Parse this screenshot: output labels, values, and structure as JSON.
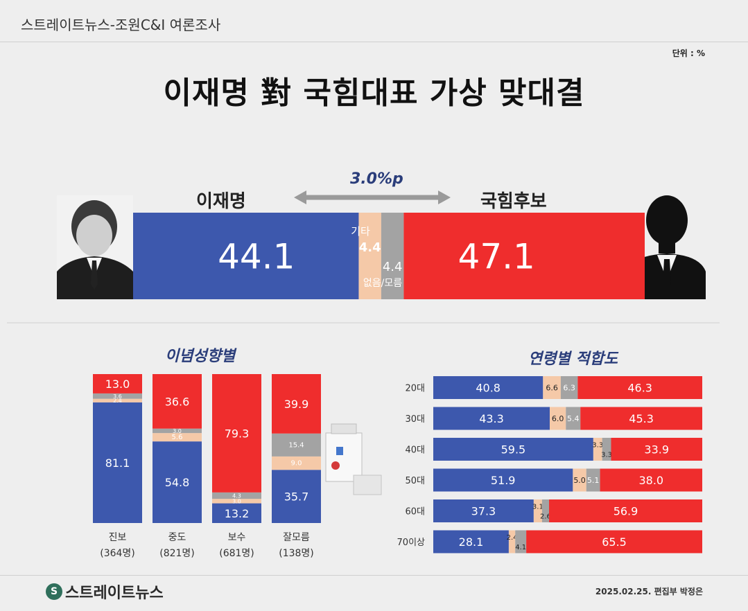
{
  "header": {
    "source": "스트레이트뉴스-조원C&I 여론조사",
    "unit": "단위 : %"
  },
  "title": "이재명 對 국힘대표 가상 맞대결",
  "main": {
    "left_name": "이재명",
    "right_name": "국힘후보",
    "gap": "3.0%p",
    "other_label": "기타",
    "dk_label": "없음/모름"
  },
  "panels": {
    "ideology_title": "이념성향별",
    "age_title": "연령별 적합도"
  },
  "colors": {
    "blue": "#3d58ad",
    "red": "#ef2d2d",
    "other": "#f5c9a8",
    "dk": "#a3a3a3"
  },
  "footer": {
    "logo": "스트레이트뉴스",
    "date": "2025.02.25. 편집부 박정은"
  },
  "chart_data": [
    {
      "type": "bar",
      "stacked": true,
      "orientation": "horizontal",
      "categories": [
        "전체"
      ],
      "series": [
        {
          "name": "이재명",
          "values": [
            44.1
          ]
        },
        {
          "name": "기타",
          "values": [
            4.4
          ]
        },
        {
          "name": "없음/모름",
          "values": [
            4.4
          ]
        },
        {
          "name": "국힘후보",
          "values": [
            47.1
          ]
        }
      ]
    },
    {
      "type": "bar",
      "stacked": true,
      "orientation": "vertical",
      "title": "이념성향별",
      "categories": [
        "진보",
        "중도",
        "보수",
        "잘모름"
      ],
      "sublabels": [
        "(364명)",
        "(821명)",
        "(681명)",
        "(138명)"
      ],
      "series": [
        {
          "name": "이재명",
          "values": [
            81.1,
            54.8,
            13.2,
            35.7
          ]
        },
        {
          "name": "기타",
          "values": [
            2.4,
            5.6,
            3.0,
            9.0
          ]
        },
        {
          "name": "없음/모름",
          "values": [
            3.6,
            3.0,
            4.3,
            15.4
          ]
        },
        {
          "name": "국힘후보",
          "values": [
            13.0,
            36.6,
            79.3,
            39.9
          ]
        }
      ]
    },
    {
      "type": "bar",
      "stacked": true,
      "orientation": "horizontal",
      "title": "연령별 적합도",
      "categories": [
        "20대",
        "30대",
        "40대",
        "50대",
        "60대",
        "70이상"
      ],
      "series": [
        {
          "name": "이재명",
          "values": [
            40.8,
            43.3,
            59.5,
            51.9,
            37.3,
            28.1
          ]
        },
        {
          "name": "기타",
          "values": [
            6.6,
            6.0,
            3.3,
            5.0,
            3.1,
            2.4
          ]
        },
        {
          "name": "없음/모름",
          "values": [
            6.3,
            5.4,
            3.3,
            5.1,
            2.6,
            4.1
          ]
        },
        {
          "name": "국힘후보",
          "values": [
            46.3,
            45.3,
            33.9,
            38.0,
            56.9,
            65.5
          ]
        }
      ]
    }
  ]
}
